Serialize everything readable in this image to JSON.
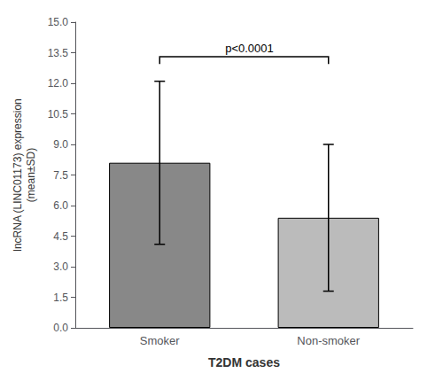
{
  "chart_data": {
    "type": "bar",
    "categories": [
      "Smoker",
      "Non-smoker"
    ],
    "values": [
      8.1,
      5.4
    ],
    "error": [
      4.0,
      3.6
    ],
    "colors": [
      "#888888",
      "#bbbbbb"
    ],
    "xlabel": "T2DM cases",
    "ylabel": "lncRNA (LINC01173) expression\n(mean±SD)",
    "ylim": [
      0,
      15.0
    ],
    "yticks": [
      {
        "value": 0,
        "label": "0.0"
      },
      1.5,
      {
        "value": 3,
        "label": "3.0"
      },
      4.5,
      {
        "value": 6,
        "label": "6.0"
      },
      7.5,
      {
        "value": 9,
        "label": "9.0"
      },
      10.5,
      {
        "value": 12,
        "label": "12.0"
      },
      13.5,
      {
        "value": 15,
        "label": "15.0"
      }
    ],
    "annotations": [
      {
        "text": "p<0.0001",
        "from": "Smoker",
        "to": "Non-smoker",
        "y": 13.3,
        "tick_down": 0.35
      }
    ],
    "grid": false
  }
}
